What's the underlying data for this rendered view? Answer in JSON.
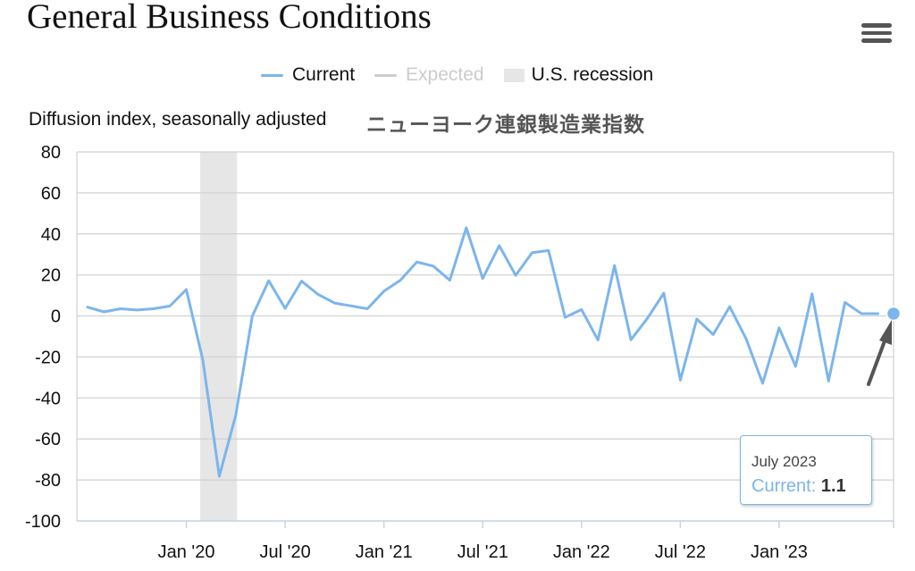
{
  "header": {
    "title": "General Business Conditions",
    "subtitle": "Diffusion index, seasonally adjusted",
    "annotation_jp": "ニューヨーク連銀製造業指数"
  },
  "legend": [
    {
      "label": "Current",
      "color": "#7cb5ec",
      "kind": "line",
      "active": true
    },
    {
      "label": "Expected",
      "color": "#cccccc",
      "kind": "line",
      "active": false
    },
    {
      "label": "U.S. recession",
      "color": "#e6e6e6",
      "kind": "box",
      "active": true
    }
  ],
  "tooltip": {
    "date": "July 2023",
    "series": "Current",
    "value": "1.1"
  },
  "chart_data": {
    "type": "line",
    "title": "General Business Conditions",
    "ylabel": "Diffusion index, seasonally adjusted",
    "ylim": [
      -100,
      80
    ],
    "yticks": [
      80,
      60,
      40,
      20,
      0,
      -20,
      -40,
      -60,
      -80,
      -100
    ],
    "xticks": [
      {
        "label": "Jan '20",
        "month": "2020-01"
      },
      {
        "label": "Jul '20",
        "month": "2020-07"
      },
      {
        "label": "Jan '21",
        "month": "2021-01"
      },
      {
        "label": "Jul '21",
        "month": "2021-07"
      },
      {
        "label": "Jan '22",
        "month": "2022-01"
      },
      {
        "label": "Jul '22",
        "month": "2022-07"
      },
      {
        "label": "Jan '23",
        "month": "2023-01"
      }
    ],
    "recession": {
      "from": "2020-02",
      "to": "2020-04"
    },
    "grid": true,
    "legend_position": "top-center",
    "series": [
      {
        "name": "Current",
        "color": "#7cb5ec",
        "x": [
          "2019-07",
          "2019-08",
          "2019-09",
          "2019-10",
          "2019-11",
          "2019-12",
          "2020-01",
          "2020-02",
          "2020-03",
          "2020-04",
          "2020-05",
          "2020-06",
          "2020-07",
          "2020-08",
          "2020-09",
          "2020-10",
          "2020-11",
          "2020-12",
          "2021-01",
          "2021-02",
          "2021-03",
          "2021-04",
          "2021-05",
          "2021-06",
          "2021-07",
          "2021-08",
          "2021-09",
          "2021-10",
          "2021-11",
          "2021-12",
          "2022-01",
          "2022-02",
          "2022-03",
          "2022-04",
          "2022-05",
          "2022-06",
          "2022-07",
          "2022-08",
          "2022-09",
          "2022-10",
          "2022-11",
          "2022-12",
          "2023-01",
          "2023-02",
          "2023-03",
          "2023-04",
          "2023-05",
          "2023-06",
          "2023-07"
        ],
        "values": [
          4.3,
          2.0,
          3.5,
          2.9,
          3.5,
          4.8,
          12.9,
          -21.5,
          -78.2,
          -48.5,
          -0.2,
          17.2,
          3.7,
          17.0,
          10.5,
          6.3,
          4.9,
          3.5,
          12.1,
          17.4,
          26.3,
          24.3,
          17.4,
          43.0,
          18.3,
          34.3,
          19.8,
          30.9,
          31.9,
          -0.7,
          3.1,
          -11.8,
          24.6,
          -11.6,
          -1.2,
          11.1,
          -31.3,
          -1.5,
          -9.1,
          4.5,
          -11.2,
          -32.9,
          -5.8,
          -24.6,
          10.8,
          -31.8,
          6.6,
          1.1,
          1.1
        ]
      }
    ]
  }
}
